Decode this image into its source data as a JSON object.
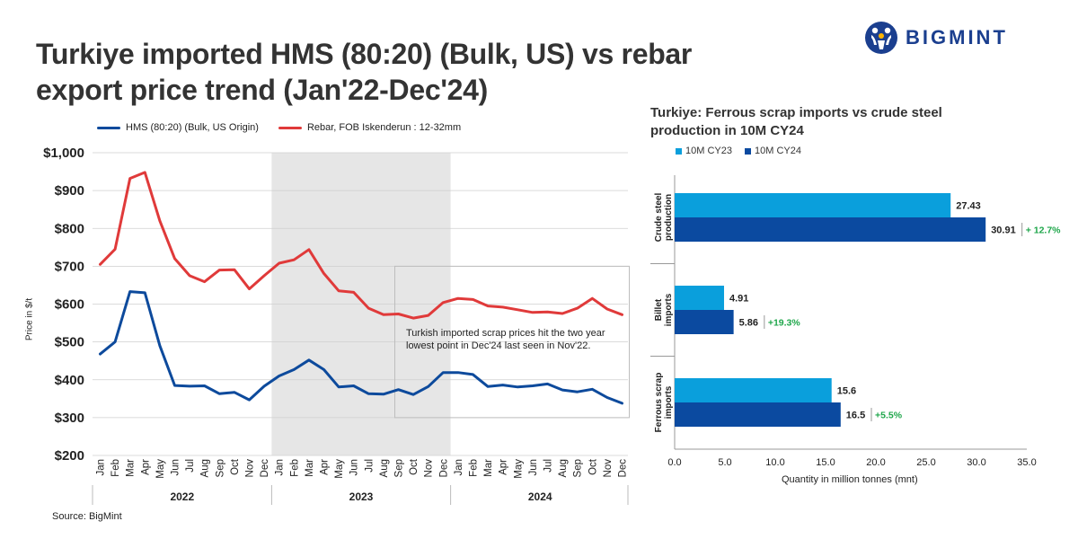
{
  "header": {
    "title": "Turkiye imported HMS (80:20) (Bulk, US) vs rebar export price trend (Jan'22-Dec'24)",
    "brand": "BIGMINT"
  },
  "left_chart": {
    "legend": [
      "HMS (80:20) (Bulk, US Origin)",
      "Rebar, FOB Iskenderun : 12-32mm"
    ],
    "ylabel": "Price in $/t",
    "annotation": "Turkish imported scrap prices hit the two year lowest point in Dec'24 last seen in Nov'22.",
    "source": "Source: BigMint"
  },
  "right_chart": {
    "title": "Turkiye: Ferrous scrap imports vs crude steel production in 10M CY24",
    "legend": [
      "10M CY23",
      "10M CY24"
    ],
    "xlabel": "Quantity in million tonnes (mnt)"
  },
  "colors": {
    "hms": "#0d4a9c",
    "rebar": "#e03a3a",
    "cy23": "#0a9fdc",
    "cy24": "#0b4aa0",
    "growth": "#1ea64a",
    "shade": "#e6e6e6",
    "brand": "#1b3f8f"
  },
  "chart_data": [
    {
      "type": "line",
      "title": "Turkiye imported HMS (80:20) (Bulk, US) vs rebar export price trend (Jan'22-Dec'24)",
      "xlabel": "",
      "ylabel": "Price in $/t",
      "x": [
        "Jan",
        "Feb",
        "Mar",
        "Apr",
        "May",
        "Jun",
        "Jul",
        "Aug",
        "Sep",
        "Oct",
        "Nov",
        "Dec",
        "Jan",
        "Feb",
        "Mar",
        "Apr",
        "May",
        "Jun",
        "Jul",
        "Aug",
        "Sep",
        "Oct",
        "Nov",
        "Dec",
        "Jan",
        "Feb",
        "Mar",
        "Apr",
        "May",
        "Jun",
        "Jul",
        "Aug",
        "Sep",
        "Oct",
        "Nov",
        "Dec"
      ],
      "year_groups": [
        {
          "label": "2022",
          "start": 0,
          "end": 11
        },
        {
          "label": "2023",
          "start": 12,
          "end": 23
        },
        {
          "label": "2024",
          "start": 24,
          "end": 35
        }
      ],
      "shaded_year": "2023",
      "ylim": [
        200,
        1000
      ],
      "yticks": [
        200,
        300,
        400,
        500,
        600,
        700,
        800,
        900,
        1000
      ],
      "ytick_labels": [
        "$200",
        "$300",
        "$400",
        "$500",
        "$600",
        "$700",
        "$800",
        "$900",
        "$1,000"
      ],
      "grid": "horizontal",
      "legend_position": "top",
      "series": [
        {
          "name": "HMS (80:20) (Bulk, US Origin)",
          "values": [
            468,
            500,
            633,
            630,
            490,
            385,
            383,
            384,
            363,
            367,
            347,
            383,
            410,
            427,
            452,
            427,
            381,
            384,
            363,
            362,
            374,
            361,
            382,
            419,
            419,
            414,
            382,
            386,
            381,
            384,
            389,
            373,
            368,
            375,
            353,
            338
          ]
        },
        {
          "name": "Rebar, FOB Iskenderun : 12-32mm",
          "values": [
            705,
            745,
            932,
            948,
            820,
            720,
            675,
            659,
            690,
            691,
            640,
            675,
            708,
            717,
            744,
            681,
            635,
            631,
            589,
            572,
            574,
            563,
            570,
            604,
            615,
            612,
            595,
            592,
            585,
            578,
            579,
            575,
            589,
            615,
            587,
            572
          ]
        }
      ]
    },
    {
      "type": "bar",
      "orientation": "horizontal",
      "title": "Turkiye: Ferrous scrap imports vs crude steel production in 10M CY24",
      "xlabel": "Quantity in million tonnes (mnt)",
      "ylabel": "",
      "categories": [
        "Crude steel production",
        "Billet imports",
        "Ferrous scrap imports"
      ],
      "xlim": [
        0,
        35
      ],
      "xticks": [
        0,
        5,
        10,
        15,
        20,
        25,
        30,
        35
      ],
      "xtick_labels": [
        "0.0",
        "5.0",
        "10.0",
        "15.0",
        "20.0",
        "25.0",
        "30.0",
        "35.0"
      ],
      "legend_position": "top",
      "series": [
        {
          "name": "10M CY23",
          "values": [
            27.43,
            4.91,
            15.6
          ],
          "labels": [
            "27.43",
            "4.91",
            "15.6"
          ]
        },
        {
          "name": "10M CY24",
          "values": [
            30.91,
            5.86,
            16.5
          ],
          "labels": [
            "30.91",
            "5.86",
            "16.5"
          ]
        }
      ],
      "growth_labels": [
        "+ 12.7%",
        "+19.3%",
        "+5.5%"
      ]
    }
  ]
}
